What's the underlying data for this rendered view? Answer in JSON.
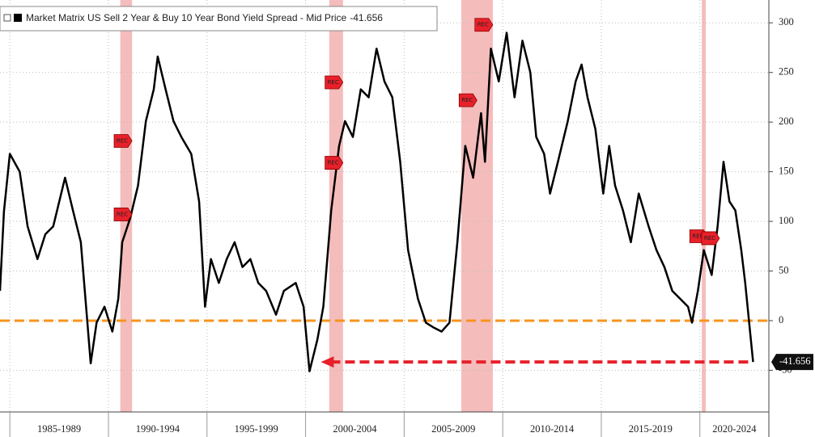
{
  "chart_data": {
    "type": "line",
    "series": [
      {
        "name": "Market Matrix US Sell 2 Year & Buy 10 Year Bond Yield Spread - Mid Price",
        "color": "#000000",
        "x": [
          1984.5,
          1984.7,
          1985.0,
          1985.5,
          1985.9,
          1986.4,
          1986.8,
          1987.2,
          1987.8,
          1988.2,
          1988.6,
          1988.9,
          1989.1,
          1989.4,
          1989.8,
          1990.2,
          1990.5,
          1990.7,
          1991.1,
          1991.5,
          1991.9,
          1992.3,
          1992.5,
          1992.9,
          1993.3,
          1993.7,
          1994.2,
          1994.6,
          1994.9,
          1995.2,
          1995.6,
          1996.0,
          1996.4,
          1996.8,
          1997.2,
          1997.6,
          1998.0,
          1998.5,
          1998.9,
          1999.5,
          1999.9,
          2000.2,
          2000.6,
          2000.9,
          2001.1,
          2001.3,
          2001.7,
          2002.0,
          2002.4,
          2002.8,
          2003.2,
          2003.6,
          2004.0,
          2004.4,
          2004.8,
          2005.2,
          2005.7,
          2006.1,
          2006.5,
          2006.9,
          2007.3,
          2007.7,
          2008.1,
          2008.5,
          2008.9,
          2009.1,
          2009.4,
          2009.8,
          2010.2,
          2010.6,
          2011.0,
          2011.4,
          2011.7,
          2012.1,
          2012.4,
          2012.8,
          2013.3,
          2013.7,
          2014.0,
          2014.3,
          2014.7,
          2015.1,
          2015.4,
          2015.7,
          2016.1,
          2016.5,
          2016.9,
          2017.4,
          2017.8,
          2018.2,
          2018.6,
          2019.0,
          2019.4,
          2019.6,
          2019.9,
          2020.2,
          2020.6,
          2020.9,
          2021.2,
          2021.5,
          2021.8,
          2022.1,
          2022.3,
          2022.5,
          2022.7
        ],
        "values": [
          30,
          110,
          168,
          150,
          95,
          62,
          87,
          95,
          144,
          111,
          79,
          6,
          -43,
          -2,
          14,
          -11,
          22,
          79,
          103,
          136,
          201,
          233,
          266,
          233,
          201,
          185,
          168,
          120,
          14,
          62,
          38,
          62,
          79,
          54,
          62,
          38,
          30,
          6,
          30,
          38,
          14,
          -51,
          -19,
          14,
          62,
          111,
          176,
          201,
          185,
          233,
          225,
          274,
          241,
          225,
          160,
          71,
          22,
          -2,
          -7,
          -11,
          -2,
          79,
          176,
          144,
          209,
          160,
          274,
          241,
          290,
          225,
          282,
          250,
          185,
          168,
          128,
          160,
          201,
          241,
          258,
          225,
          193,
          128,
          176,
          136,
          111,
          79,
          128,
          95,
          71,
          54,
          30,
          22,
          14,
          -2,
          30,
          71,
          46,
          95,
          160,
          120,
          111,
          71,
          38,
          -2,
          -41.656
        ]
      }
    ],
    "xlim": [
      1984.5,
      2023.5
    ],
    "xticks": [
      {
        "value": 1985,
        "label": "1985-1989"
      },
      {
        "value": 1990,
        "label": "1990-1994"
      },
      {
        "value": 1995,
        "label": "1995-1999"
      },
      {
        "value": 2000,
        "label": "2000-2004"
      },
      {
        "value": 2005,
        "label": "2005-2009"
      },
      {
        "value": 2010,
        "label": "2010-2014"
      },
      {
        "value": 2015,
        "label": "2015-2019"
      },
      {
        "value": 2020,
        "label": "2020-2024"
      }
    ],
    "ylim": [
      -92,
      323
    ],
    "yticks": [
      -50,
      0,
      50,
      100,
      150,
      200,
      250,
      300
    ],
    "grid": true,
    "reference_line": {
      "value": 0,
      "color": "#f7941d"
    },
    "recessions": [
      {
        "start": 1990.6,
        "end": 1991.2
      },
      {
        "start": 2001.2,
        "end": 2001.9
      },
      {
        "start": 2007.9,
        "end": 2009.5
      },
      {
        "start": 2020.1,
        "end": 2020.3
      }
    ],
    "recession_color": "#f2a5a5",
    "annotations": [
      {
        "text": "REC",
        "x": 1990.7,
        "y": 181
      },
      {
        "text": "REC",
        "x": 1990.7,
        "y": 107
      },
      {
        "text": "REC",
        "x": 2001.4,
        "y": 240
      },
      {
        "text": "REC",
        "x": 2001.4,
        "y": 159
      },
      {
        "text": "REC",
        "x": 2008.2,
        "y": 222
      },
      {
        "text": "REC",
        "x": 2009.0,
        "y": 298
      },
      {
        "text": "REC",
        "x": 2019.9,
        "y": 85
      },
      {
        "text": "REC",
        "x": 2020.5,
        "y": 83
      }
    ],
    "arrow_color": "#e8202a"
  }
}
